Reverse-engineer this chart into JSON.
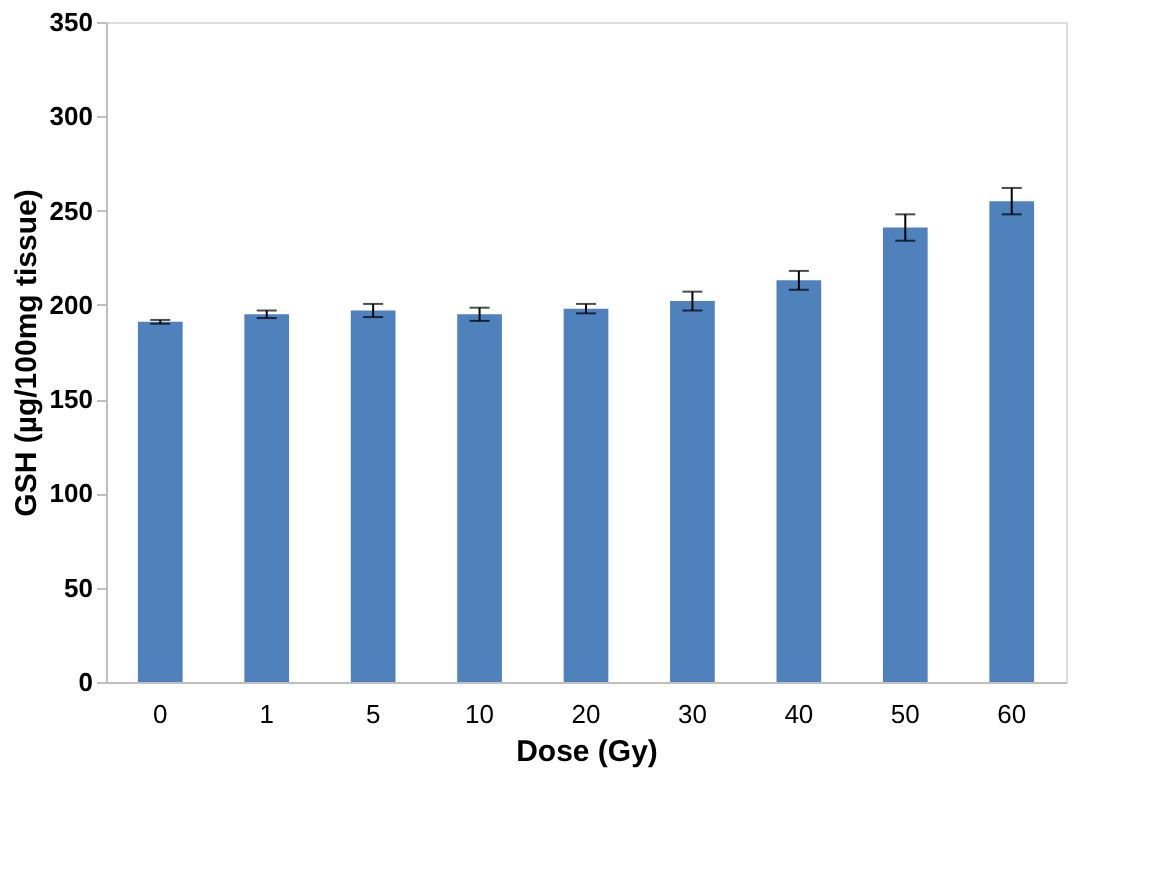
{
  "chart_data": {
    "type": "bar",
    "xlabel": "Dose (Gy)",
    "ylabel": "GSH (µg/100mg tissue)",
    "categories": [
      "0",
      "1",
      "5",
      "10",
      "20",
      "30",
      "40",
      "50",
      "60"
    ],
    "values": [
      191,
      195,
      197,
      195,
      198,
      202,
      213,
      241,
      255
    ],
    "errors": [
      1,
      2,
      3.5,
      3.5,
      2.5,
      5,
      5,
      7,
      7
    ],
    "color": "#4f81bd",
    "ylim": [
      0,
      350
    ],
    "yticks": [
      0,
      50,
      100,
      150,
      200,
      250,
      300,
      350
    ],
    "grid": false
  }
}
